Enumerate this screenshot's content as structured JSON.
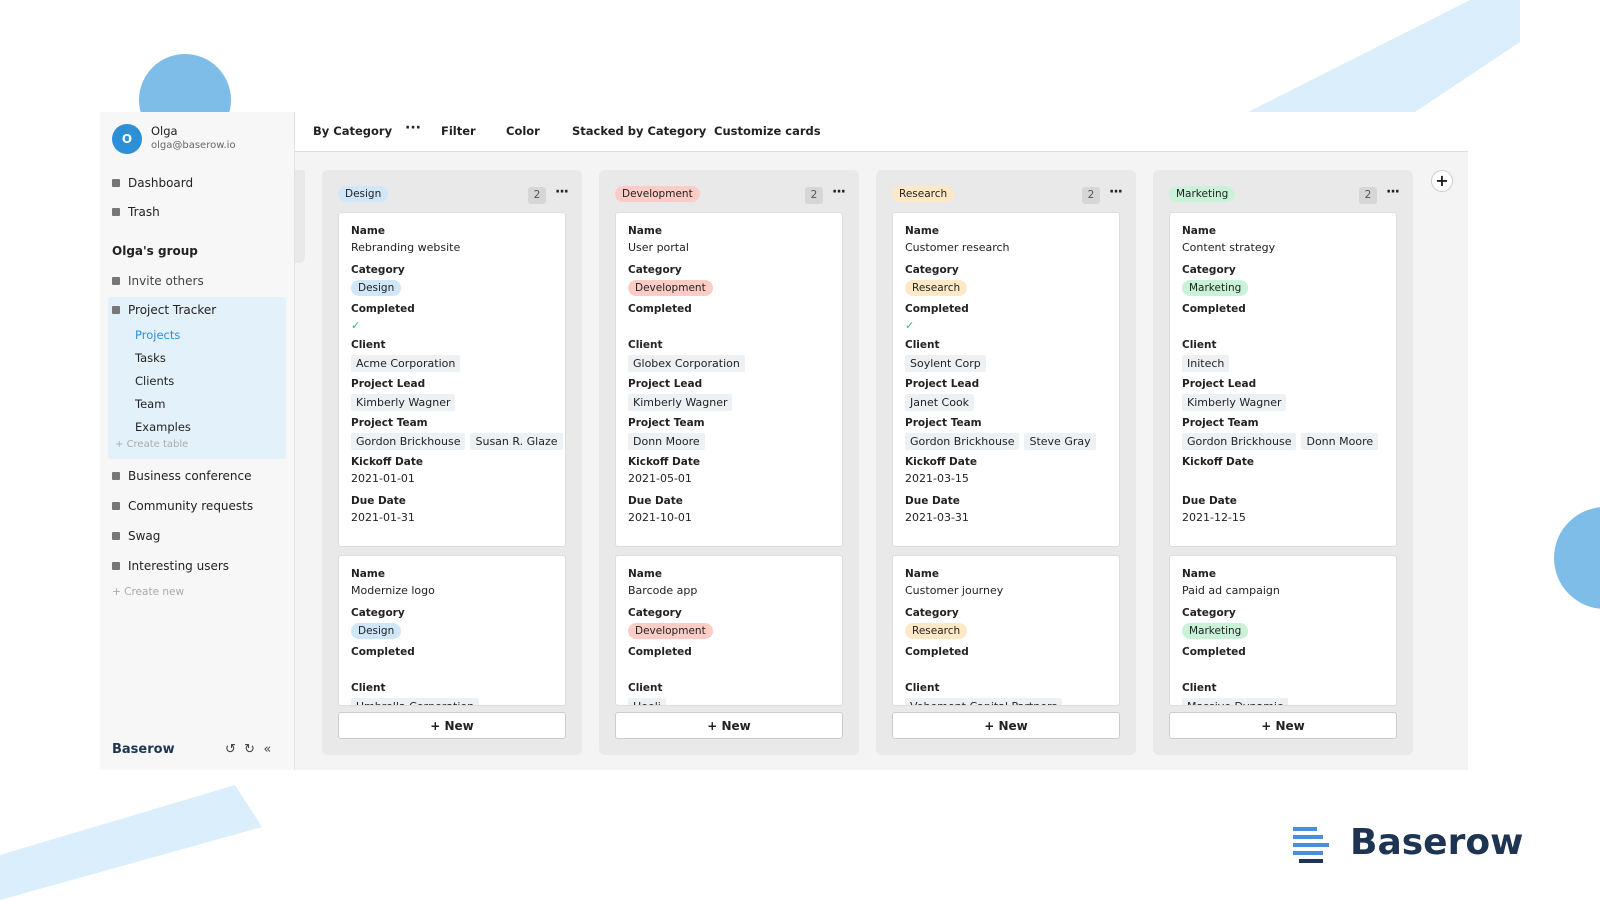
{
  "user": {
    "initial": "O",
    "name": "Olga",
    "email": "olga@baserow.io"
  },
  "sidebar": {
    "nav": [
      "Dashboard",
      "Trash"
    ],
    "group": "Olga's group",
    "invite": "Invite others",
    "databases": [
      {
        "name": "Project Tracker",
        "tables": [
          "Projects",
          "Tasks",
          "Clients",
          "Team",
          "Examples"
        ],
        "create_table": "Create table"
      },
      {
        "name": "Business conference"
      },
      {
        "name": "Community requests"
      },
      {
        "name": "Swag"
      },
      {
        "name": "Interesting users"
      }
    ],
    "create_new": "Create new",
    "footer_brand": "Baserow"
  },
  "toolbar": [
    "By Category",
    "Filter",
    "Color",
    "Stacked by Category",
    "Customize cards"
  ],
  "field_labels": {
    "name": "Name",
    "category": "Category",
    "completed": "Completed",
    "client": "Client",
    "lead": "Project Lead",
    "team": "Project Team",
    "kickoff": "Kickoff Date",
    "due": "Due Date"
  },
  "columns": [
    {
      "label": "Design",
      "count": "2",
      "color": "#cfe7f8",
      "cards": [
        {
          "name": "Rebranding website",
          "completed": true,
          "client": "Acme Corporation",
          "lead": "Kimberly Wagner",
          "team": [
            "Gordon Brickhouse",
            "Susan R. Glaze"
          ],
          "kickoff": "2021-01-01",
          "due": "2021-01-31"
        },
        {
          "name": "Modernize logo",
          "completed": false,
          "client": "Umbrella Corporation"
        }
      ]
    },
    {
      "label": "Development",
      "count": "2",
      "color": "#fbcdc6",
      "cards": [
        {
          "name": "User portal",
          "completed": false,
          "client": "Globex Corporation",
          "lead": "Kimberly Wagner",
          "team": [
            "Donn Moore"
          ],
          "kickoff": "2021-05-01",
          "due": "2021-10-01"
        },
        {
          "name": "Barcode app",
          "completed": false,
          "client": "Hooli"
        }
      ]
    },
    {
      "label": "Research",
      "count": "2",
      "color": "#fde9c6",
      "cards": [
        {
          "name": "Customer research",
          "completed": true,
          "client": "Soylent Corp",
          "lead": "Janet Cook",
          "team": [
            "Gordon Brickhouse",
            "Steve Gray"
          ],
          "kickoff": "2021-03-15",
          "due": "2021-03-31"
        },
        {
          "name": "Customer journey",
          "completed": false,
          "client": "Vehement Capital Partners"
        }
      ]
    },
    {
      "label": "Marketing",
      "count": "2",
      "color": "#c9f2d8",
      "cards": [
        {
          "name": "Content strategy",
          "completed": false,
          "client": "Initech",
          "lead": "Kimberly Wagner",
          "team": [
            "Gordon Brickhouse",
            "Donn Moore"
          ],
          "kickoff": null,
          "due": "2021-12-15"
        },
        {
          "name": "Paid ad campaign",
          "completed": false,
          "client": "Massive Dynamic"
        }
      ]
    }
  ],
  "new_button": "New",
  "brand": "Baserow"
}
